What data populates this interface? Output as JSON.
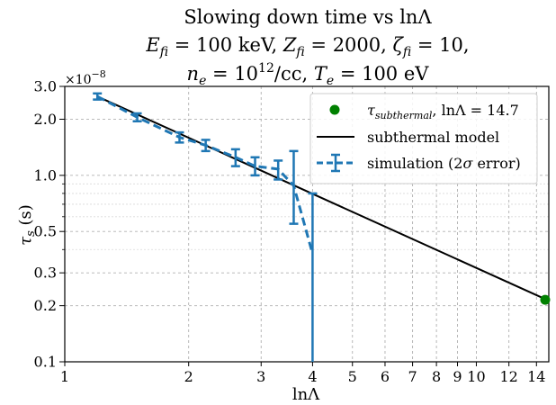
{
  "chart_data": {
    "type": "line",
    "title_lines": [
      "Slowing down time vs lnΛ",
      "E_fi = 100 keV, Z_fi = 2000, ζ_fi = 10,",
      "n_e = 10^12/cc, T_e = 100 eV"
    ],
    "xlabel": "lnΛ",
    "ylabel": "τs (s)",
    "y_multiplier": "×10⁻⁸",
    "x_scale": "log",
    "y_scale": "log",
    "xlim": [
      1,
      15
    ],
    "ylim": [
      0.1,
      3.0
    ],
    "x_ticks": [
      1,
      2,
      3,
      4,
      5,
      6,
      7,
      8,
      9,
      10,
      12,
      14
    ],
    "y_ticks": [
      0.1,
      0.2,
      0.3,
      0.5,
      1.0,
      2.0,
      3.0
    ],
    "x_tick_labels": [
      "1",
      "2",
      "3",
      "4",
      "5",
      "6",
      "7",
      "8",
      "9",
      "10",
      "12",
      "14"
    ],
    "y_tick_labels": [
      "0.1",
      "0.2",
      "0.3",
      "0.5",
      "1.0",
      "2.0",
      "3.0"
    ],
    "grid": true,
    "legend_position": "top-right",
    "legend": [
      "τsubthermal, lnΛ = 14.7",
      "subthermal model",
      "simulation (2σ error)"
    ],
    "series": [
      {
        "name": "subthermal model",
        "color": "#000000",
        "style": "solid",
        "x": [
          1.2,
          14.7
        ],
        "y": [
          2.65,
          0.217
        ]
      },
      {
        "name": "simulation (2σ error)",
        "color": "#1f77b4",
        "style": "dashed",
        "x": [
          1.2,
          1.5,
          1.9,
          2.2,
          2.6,
          2.9,
          3.3,
          3.6,
          4.0
        ],
        "y": [
          2.65,
          2.05,
          1.6,
          1.45,
          1.25,
          1.12,
          1.08,
          0.88,
          0.38
        ],
        "err_low": [
          2.55,
          1.95,
          1.5,
          1.35,
          1.12,
          1.0,
          0.95,
          0.55,
          0.1
        ],
        "err_high": [
          2.75,
          2.15,
          1.7,
          1.55,
          1.38,
          1.25,
          1.2,
          1.35,
          0.8
        ]
      },
      {
        "name": "τsubthermal, lnΛ = 14.7",
        "color": "#008000",
        "style": "marker",
        "x": [
          14.7
        ],
        "y": [
          0.215
        ]
      }
    ]
  }
}
